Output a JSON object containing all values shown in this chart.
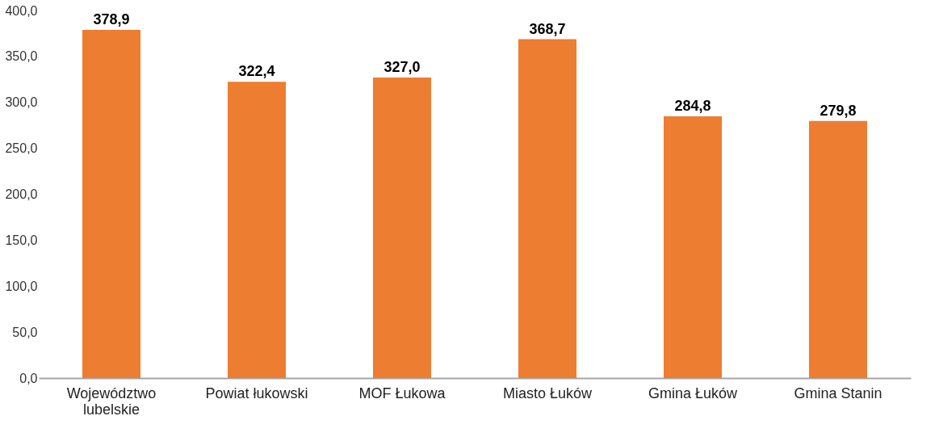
{
  "chart_data": {
    "type": "bar",
    "categories": [
      "Województwo lubelskie",
      "Powiat łukowski",
      "MOF Łukowa",
      "Miasto Łuków",
      "Gmina Łuków",
      "Gmina Stanin"
    ],
    "values": [
      378.9,
      322.4,
      327.0,
      368.7,
      284.8,
      279.8
    ],
    "value_labels": [
      "378,9",
      "322,4",
      "327,0",
      "368,7",
      "284,8",
      "279,8"
    ],
    "color": "#ed7d31",
    "ylim": [
      0,
      400
    ],
    "yticks": [
      {
        "value": 0,
        "label": "0,0"
      },
      {
        "value": 50,
        "label": "50,0"
      },
      {
        "value": 100,
        "label": "100,0"
      },
      {
        "value": 150,
        "label": "150,0"
      },
      {
        "value": 200,
        "label": "200,0"
      },
      {
        "value": 250,
        "label": "250,0"
      },
      {
        "value": 300,
        "label": "300,0"
      },
      {
        "value": 350,
        "label": "350,0"
      },
      {
        "value": 400,
        "label": "400,0"
      }
    ],
    "grid": false
  }
}
